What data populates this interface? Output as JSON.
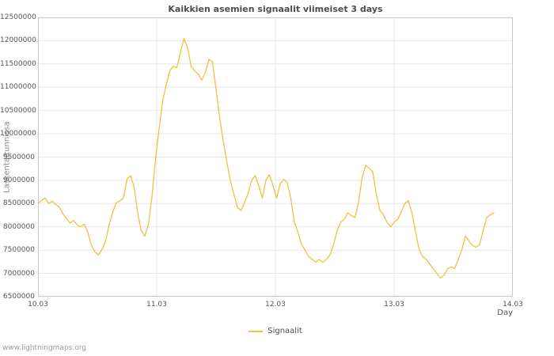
{
  "watermark": "www.lightningmaps.org",
  "colors": {
    "line": "#edc240",
    "grid": "#e6e6e6",
    "border": "#c8c8c8",
    "text": "#545454",
    "title": "#4d4d4d",
    "muted": "#8a8a8a"
  },
  "chart_data": {
    "type": "line",
    "title": "Kaikkien asemien signaalit viimeiset 3 days",
    "xlabel": "Day",
    "ylabel": "Laskenta/tunnissa",
    "grid": true,
    "legend_position": "bottom",
    "x_domain": [
      10,
      14
    ],
    "ylim": [
      6500000,
      12500000
    ],
    "x_ticks": [
      {
        "v": 10,
        "label": "10.03"
      },
      {
        "v": 11,
        "label": "11.03"
      },
      {
        "v": 12,
        "label": "12.03"
      },
      {
        "v": 13,
        "label": "13.03"
      },
      {
        "v": 14,
        "label": "14.03"
      }
    ],
    "y_ticks": [
      6500000,
      7000000,
      7500000,
      8000000,
      8500000,
      9000000,
      9500000,
      10000000,
      10500000,
      11000000,
      11500000,
      12000000,
      12500000
    ],
    "series": [
      {
        "name": "Signaalit",
        "x_start": 10.0,
        "x_step": 0.03,
        "values": [
          8500000,
          8570000,
          8620000,
          8500000,
          8550000,
          8480000,
          8420000,
          8280000,
          8180000,
          8080000,
          8140000,
          8040000,
          8000000,
          8060000,
          7880000,
          7600000,
          7460000,
          7400000,
          7520000,
          7700000,
          8050000,
          8320000,
          8520000,
          8560000,
          8620000,
          9020000,
          9100000,
          8850000,
          8300000,
          7920000,
          7800000,
          8050000,
          8650000,
          9450000,
          10100000,
          10700000,
          11050000,
          11350000,
          11450000,
          11420000,
          11750000,
          12050000,
          11850000,
          11450000,
          11350000,
          11280000,
          11150000,
          11320000,
          11600000,
          11550000,
          10950000,
          10350000,
          9850000,
          9400000,
          9000000,
          8700000,
          8420000,
          8350000,
          8520000,
          8720000,
          9000000,
          9100000,
          8880000,
          8620000,
          9000000,
          9120000,
          8880000,
          8620000,
          8920000,
          9020000,
          8950000,
          8600000,
          8100000,
          7880000,
          7620000,
          7500000,
          7360000,
          7300000,
          7240000,
          7300000,
          7240000,
          7300000,
          7400000,
          7620000,
          7920000,
          8100000,
          8160000,
          8300000,
          8240000,
          8200000,
          8520000,
          9050000,
          9320000,
          9260000,
          9180000,
          8700000,
          8360000,
          8260000,
          8100000,
          8000000,
          8100000,
          8160000,
          8320000,
          8500000,
          8560000,
          8300000,
          7900000,
          7520000,
          7360000,
          7300000,
          7200000,
          7100000,
          7000000,
          6900000,
          6960000,
          7100000,
          7140000,
          7100000,
          7300000,
          7500000,
          7800000,
          7700000,
          7600000,
          7560000,
          7620000,
          7920000,
          8200000,
          8260000,
          8300000
        ]
      }
    ]
  }
}
